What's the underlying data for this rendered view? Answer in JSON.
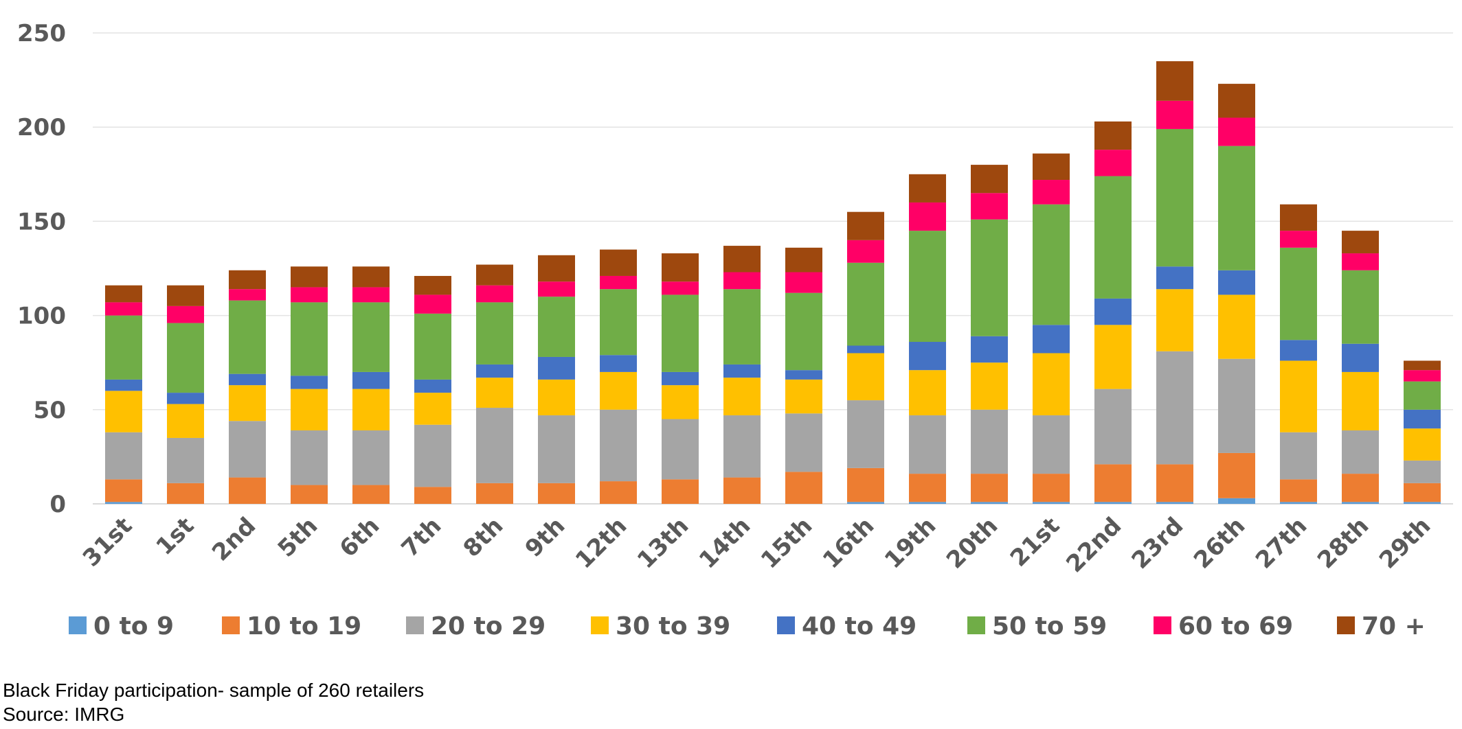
{
  "caption": {
    "line1": "Black Friday participation- sample of 260 retailers",
    "line2": "Source: IMRG"
  },
  "chart_data": {
    "type": "bar",
    "stacked": true,
    "ylim": [
      0,
      250
    ],
    "yticks": [
      0,
      50,
      100,
      150,
      200,
      250
    ],
    "grid": true,
    "legend_position": "bottom",
    "categories": [
      "31st",
      "1st",
      "2nd",
      "5th",
      "6th",
      "7th",
      "8th",
      "9th",
      "12th",
      "13th",
      "14th",
      "15th",
      "16th",
      "19th",
      "20th",
      "21st",
      "22nd",
      "23rd",
      "26th",
      "27th",
      "28th",
      "29th"
    ],
    "series": [
      {
        "name": "0 to 9",
        "color": "#5B9BD5",
        "values": [
          1,
          0,
          0,
          0,
          0,
          0,
          0,
          0,
          0,
          0,
          0,
          0,
          1,
          1,
          1,
          1,
          1,
          1,
          3,
          1,
          1,
          1
        ]
      },
      {
        "name": "10 to 19",
        "color": "#ED7D31",
        "values": [
          12,
          11,
          14,
          10,
          10,
          9,
          11,
          11,
          12,
          13,
          14,
          17,
          18,
          15,
          15,
          15,
          20,
          20,
          24,
          12,
          15,
          10
        ]
      },
      {
        "name": "20 to 29",
        "color": "#A5A5A5",
        "values": [
          25,
          24,
          30,
          29,
          29,
          33,
          40,
          36,
          38,
          32,
          33,
          31,
          36,
          31,
          34,
          31,
          40,
          60,
          50,
          25,
          23,
          12
        ]
      },
      {
        "name": "30 to 39",
        "color": "#FFC000",
        "values": [
          22,
          18,
          19,
          22,
          22,
          17,
          16,
          19,
          20,
          18,
          20,
          18,
          25,
          24,
          25,
          33,
          34,
          33,
          34,
          38,
          31,
          17
        ]
      },
      {
        "name": "40 to 49",
        "color": "#4472C4",
        "values": [
          6,
          6,
          6,
          7,
          9,
          7,
          7,
          12,
          9,
          7,
          7,
          5,
          4,
          15,
          14,
          15,
          14,
          12,
          13,
          11,
          15,
          10
        ]
      },
      {
        "name": "50 to 59",
        "color": "#70AD47",
        "values": [
          34,
          37,
          39,
          39,
          37,
          35,
          33,
          32,
          35,
          41,
          40,
          41,
          44,
          59,
          62,
          64,
          65,
          73,
          66,
          49,
          39,
          15
        ]
      },
      {
        "name": "60 to 69",
        "color": "#FF0066",
        "values": [
          7,
          9,
          6,
          8,
          8,
          10,
          9,
          8,
          7,
          7,
          9,
          11,
          12,
          15,
          14,
          13,
          14,
          15,
          15,
          9,
          9,
          6
        ]
      },
      {
        "name": "70 +",
        "color": "#9E480E",
        "values": [
          9,
          11,
          10,
          11,
          11,
          10,
          11,
          14,
          14,
          15,
          14,
          13,
          15,
          15,
          15,
          14,
          15,
          21,
          18,
          14,
          12,
          5
        ]
      }
    ]
  }
}
